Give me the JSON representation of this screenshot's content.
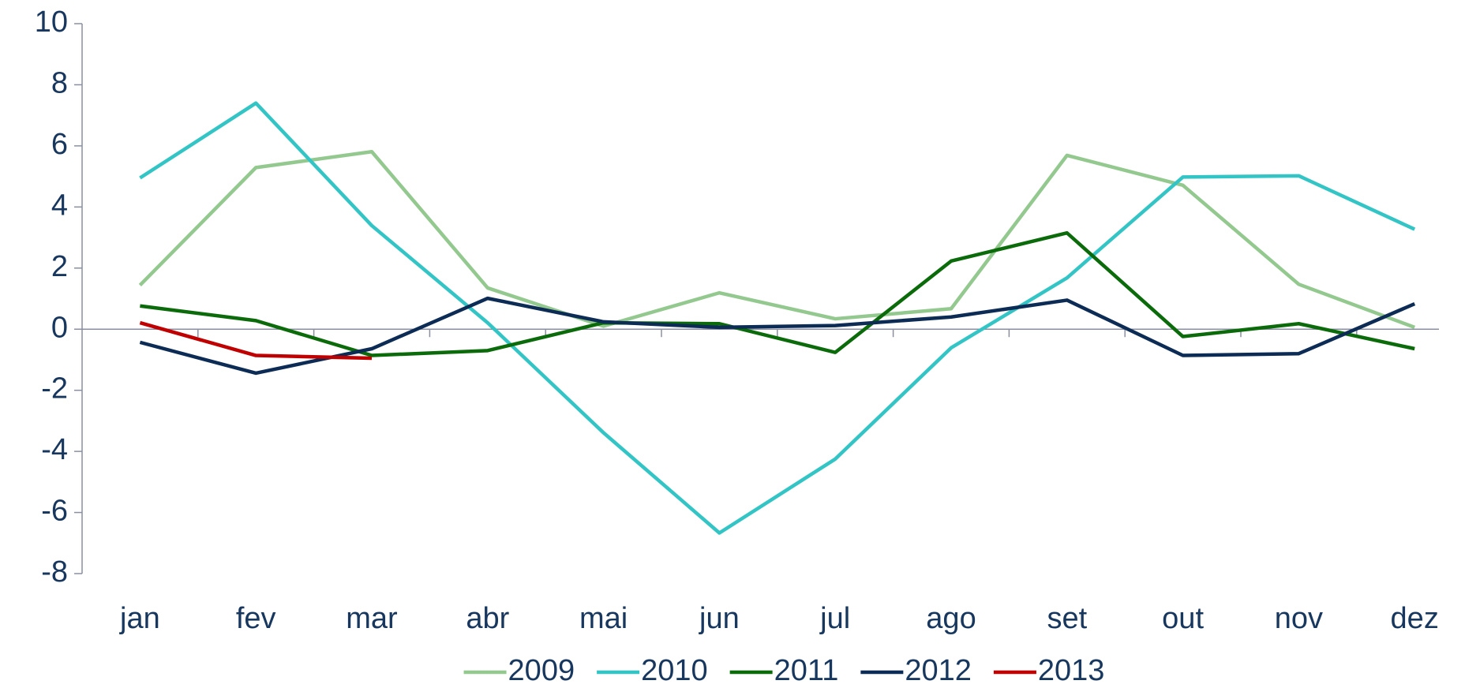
{
  "chart_data": {
    "type": "line",
    "categories": [
      "jan",
      "fev",
      "mar",
      "abr",
      "mai",
      "jun",
      "jul",
      "ago",
      "set",
      "out",
      "nov",
      "dez"
    ],
    "series": [
      {
        "name": "2009",
        "color": "#93c98f",
        "values": [
          1.44,
          5.29,
          5.81,
          1.35,
          0.1,
          1.19,
          0.34,
          0.67,
          5.69,
          4.71,
          1.47,
          0.06
        ]
      },
      {
        "name": "2010",
        "color": "#33c5c5",
        "values": [
          4.95,
          7.4,
          3.39,
          0.21,
          -3.39,
          -6.67,
          -4.25,
          -0.61,
          1.68,
          4.98,
          5.02,
          3.27
        ]
      },
      {
        "name": "2011",
        "color": "#0b6b0b",
        "values": [
          0.76,
          0.28,
          -0.86,
          -0.7,
          0.21,
          0.18,
          -0.76,
          2.23,
          3.15,
          -0.24,
          0.18,
          -0.64
        ]
      },
      {
        "name": "2012",
        "color": "#0c2c55",
        "values": [
          -0.43,
          -1.44,
          -0.64,
          1.01,
          0.24,
          0.06,
          0.12,
          0.4,
          0.95,
          -0.86,
          -0.8,
          0.83
        ]
      },
      {
        "name": "2013",
        "color": "#c00000",
        "values": [
          0.21,
          -0.86,
          -0.95,
          null,
          null,
          null,
          null,
          null,
          null,
          null,
          null,
          null
        ]
      }
    ],
    "ylim": [
      -8,
      10
    ],
    "yticks": [
      -8,
      -6,
      -4,
      -2,
      0,
      2,
      4,
      6,
      8,
      10
    ],
    "legend": "bottom"
  }
}
